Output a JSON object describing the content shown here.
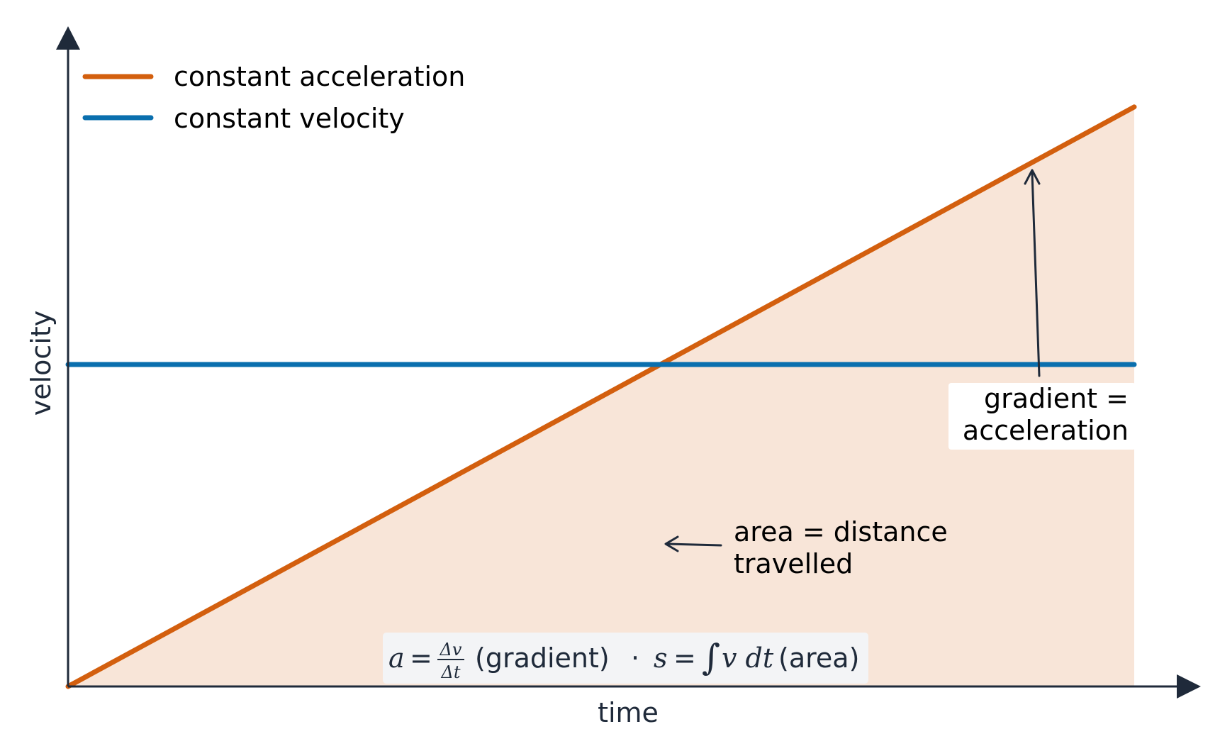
{
  "chart_data": {
    "type": "line",
    "xlabel": "time",
    "ylabel": "velocity",
    "xlim": [
      0,
      1
    ],
    "ylim": [
      0,
      1
    ],
    "grid": false,
    "legend_position": "top-left",
    "series": [
      {
        "name": "constant acceleration",
        "color": "#d35f0e",
        "x": [
          0,
          1
        ],
        "y": [
          0,
          0.9
        ],
        "fill_under": true,
        "fill_color": "#f8e5d8"
      },
      {
        "name": "constant velocity",
        "color": "#0a6fae",
        "x": [
          0,
          1
        ],
        "y": [
          0.5,
          0.5
        ]
      }
    ],
    "annotations": [
      {
        "name": "gradient-annotation",
        "lines": [
          "gradient =",
          "acceleration"
        ]
      },
      {
        "name": "area-annotation",
        "lines": [
          "area = distance",
          "travelled"
        ]
      }
    ],
    "formula": {
      "a_var": "a",
      "eq": "=",
      "numerator": "Δv",
      "denominator": "Δt",
      "gradient_text": "(gradient)",
      "separator": "·",
      "s_var": "s",
      "integral": "∫",
      "integrand": "v dt",
      "area_text": "(area)"
    },
    "colors": {
      "axis": "#1f2a3a",
      "annotation_arrow": "#1f2a3a",
      "formula_box": "#f3f4f6"
    }
  }
}
